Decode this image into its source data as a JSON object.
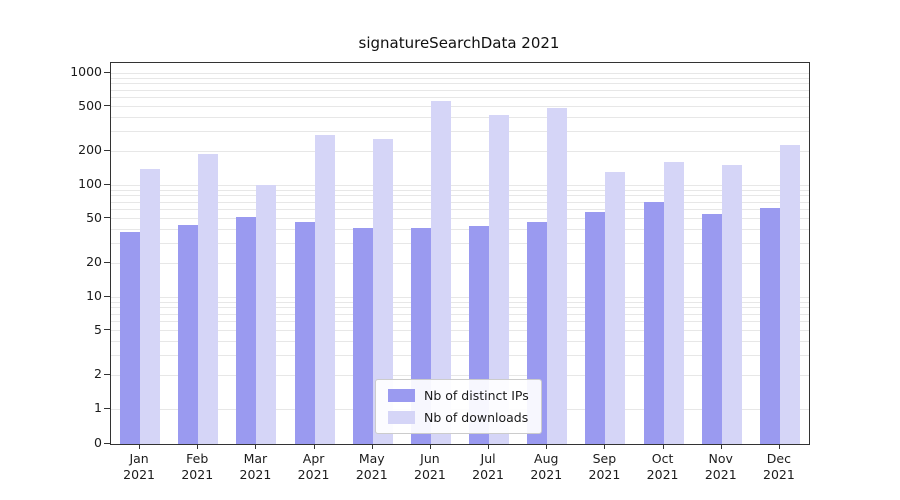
{
  "chart_data": {
    "type": "bar",
    "title": "signatureSearchData 2021",
    "categories": [
      "Jan 2021",
      "Feb 2021",
      "Mar 2021",
      "Apr 2021",
      "May 2021",
      "Jun 2021",
      "Jul 2021",
      "Aug 2021",
      "Sep 2021",
      "Oct 2021",
      "Nov 2021",
      "Dec 2021"
    ],
    "series": [
      {
        "name": "Nb of distinct IPs",
        "color": "#9a9af0",
        "values": [
          38,
          44,
          52,
          47,
          41,
          41,
          43,
          47,
          57,
          70,
          55,
          62
        ]
      },
      {
        "name": "Nb of downloads",
        "color": "#d5d5f7",
        "values": [
          140,
          190,
          100,
          280,
          255,
          560,
          420,
          490,
          130,
          160,
          150,
          230
        ]
      }
    ],
    "xlabel": "",
    "ylabel": "",
    "y_scale": "symlog",
    "y_ticks": [
      0,
      1,
      2,
      5,
      10,
      20,
      50,
      100,
      200,
      500,
      1000
    ],
    "ylim": [
      0,
      1000
    ],
    "grid": "horizontal log minor gridlines",
    "legend_position": "lower center inside plot"
  },
  "colors": {
    "grid": "#e7e7e7",
    "axis": "#333333",
    "text": "#1c1c1c",
    "background": "#ffffff"
  }
}
